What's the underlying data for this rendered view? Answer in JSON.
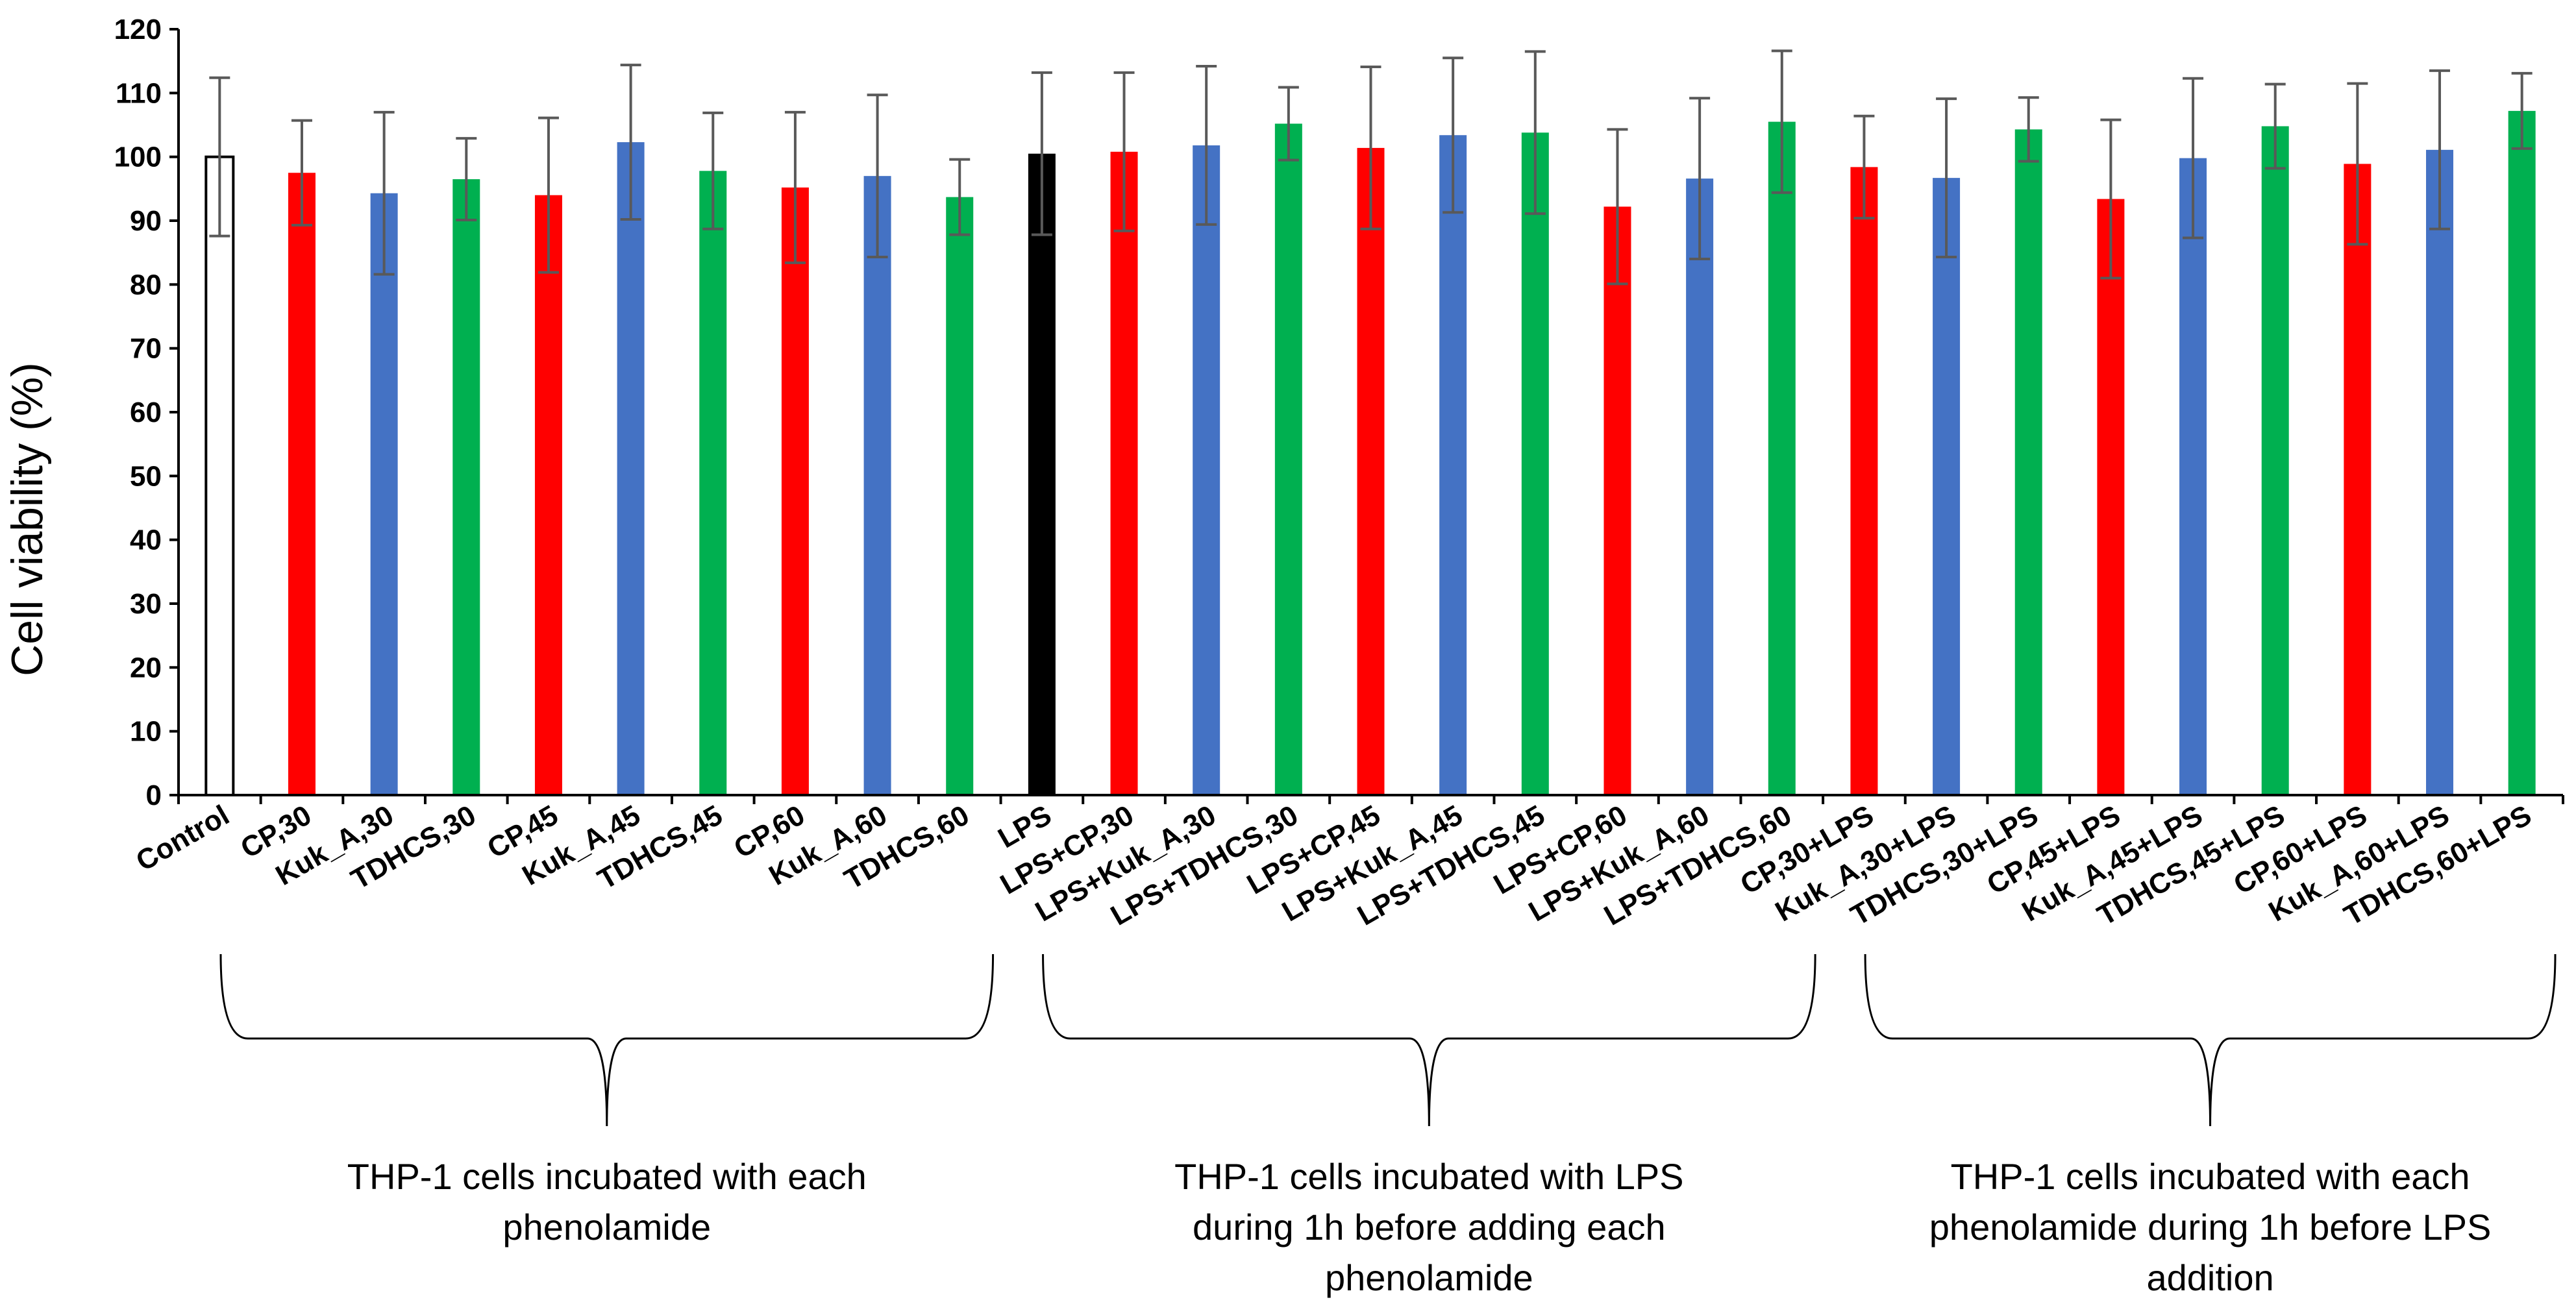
{
  "chart_data": {
    "type": "bar",
    "ylabel": "Cell viability (%)",
    "xlabel": "",
    "ylim": [
      0,
      120
    ],
    "yticks": [
      0,
      10,
      20,
      30,
      40,
      50,
      60,
      70,
      80,
      90,
      100,
      110,
      120
    ],
    "grid": false,
    "legend": "none",
    "categories": [
      "Control",
      "CP,30",
      "Kuk_A,30",
      "TDHCS,30",
      "CP,45",
      "Kuk_A,45",
      "TDHCS,45",
      "CP,60",
      "Kuk_A,60",
      "TDHCS,60",
      "LPS",
      "LPS+CP,30",
      "LPS+Kuk_A,30",
      "LPS+TDHCS,30",
      "LPS+CP,45",
      "LPS+Kuk_A,45",
      "LPS+TDHCS,45",
      "LPS+CP,60",
      "LPS+Kuk_A,60",
      "LPS+TDHCS,60",
      "CP,30+LPS",
      "Kuk_A,30+LPS",
      "TDHCS,30+LPS",
      "CP,45+LPS",
      "Kuk_A,45+LPS",
      "TDHCS,45+LPS",
      "CP,60+LPS",
      "Kuk_A,60+LPS",
      "TDHCS,60+LPS"
    ],
    "values": [
      100,
      97.5,
      94.3,
      96.5,
      94,
      102.3,
      97.8,
      95.2,
      97,
      93.7,
      100.5,
      100.8,
      101.8,
      105.2,
      101.4,
      103.4,
      103.8,
      92.2,
      96.6,
      105.5,
      98.4,
      96.7,
      104.3,
      93.4,
      99.8,
      104.8,
      98.9,
      101.1,
      107.2
    ],
    "errors": [
      12.4,
      8.2,
      12.7,
      6.4,
      12.1,
      12.1,
      9.1,
      11.8,
      12.7,
      5.9,
      12.7,
      12.4,
      12.4,
      5.7,
      12.7,
      12.1,
      12.7,
      12.1,
      12.6,
      11.1,
      8.0,
      12.4,
      5.0,
      12.4,
      12.5,
      6.6,
      12.6,
      12.4,
      5.9
    ],
    "colors": [
      "#ffffff",
      "#ff0000",
      "#4472c4",
      "#00b050",
      "#ff0000",
      "#4472c4",
      "#00b050",
      "#ff0000",
      "#4472c4",
      "#00b050",
      "#000000",
      "#ff0000",
      "#4472c4",
      "#00b050",
      "#ff0000",
      "#4472c4",
      "#00b050",
      "#ff0000",
      "#4472c4",
      "#00b050",
      "#ff0000",
      "#4472c4",
      "#00b050",
      "#ff0000",
      "#4472c4",
      "#00b050",
      "#ff0000",
      "#4472c4",
      "#00b050"
    ],
    "groups": [
      {
        "label_lines": [
          "THP-1 cells incubated with each",
          "phenolamide"
        ],
        "from": 0,
        "to": 9
      },
      {
        "label_lines": [
          "THP-1 cells incubated with LPS",
          "during  1h before adding each",
          "phenolamide"
        ],
        "from": 10,
        "to": 19
      },
      {
        "label_lines": [
          "THP-1 cells incubated with each",
          "phenolamide  during  1h before LPS",
          "addition"
        ],
        "from": 20,
        "to": 28
      }
    ]
  }
}
